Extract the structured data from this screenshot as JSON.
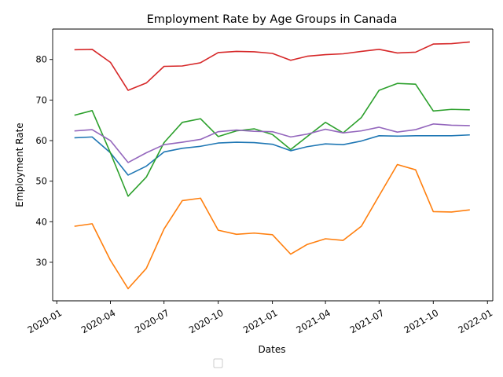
{
  "chart_data": {
    "type": "line",
    "title": "Employment Rate by Age Groups in Canada",
    "xlabel": "Dates",
    "ylabel": "Employment Rate",
    "x_dates": [
      "2020-02-01",
      "2020-03-01",
      "2020-04-01",
      "2020-05-01",
      "2020-06-01",
      "2020-07-01",
      "2020-08-01",
      "2020-09-01",
      "2020-10-01",
      "2020-11-01",
      "2020-12-01",
      "2021-01-01",
      "2021-02-01",
      "2021-03-01",
      "2021-04-01",
      "2021-05-01",
      "2021-06-01",
      "2021-07-01",
      "2021-08-01",
      "2021-09-01",
      "2021-10-01",
      "2021-11-01",
      "2021-12-01"
    ],
    "x_range": [
      "2019-12-25",
      "2022-01-10"
    ],
    "ylim": [
      20.5,
      87.5
    ],
    "x_ticks": [
      {
        "date": "2020-01-01",
        "label": "2020-01"
      },
      {
        "date": "2020-04-01",
        "label": "2020-04"
      },
      {
        "date": "2020-07-01",
        "label": "2020-07"
      },
      {
        "date": "2020-10-01",
        "label": "2020-10"
      },
      {
        "date": "2021-01-01",
        "label": "2021-01"
      },
      {
        "date": "2021-04-01",
        "label": "2021-04"
      },
      {
        "date": "2021-07-01",
        "label": "2021-07"
      },
      {
        "date": "2021-10-01",
        "label": "2021-10"
      },
      {
        "date": "2022-01-01",
        "label": "2022-01"
      }
    ],
    "y_ticks": [
      30,
      40,
      50,
      60,
      70,
      80
    ],
    "grid": false,
    "legend": {
      "placement": "bottom-center",
      "entries": []
    },
    "series": [
      {
        "color": "#1f77b4",
        "values": [
          60.7,
          60.9,
          57.0,
          51.5,
          53.7,
          57.2,
          58.1,
          58.6,
          59.4,
          59.6,
          59.5,
          59.1,
          57.5,
          58.5,
          59.2,
          59.0,
          59.9,
          61.2,
          61.1,
          61.2,
          61.2,
          61.2,
          61.4
        ]
      },
      {
        "color": "#ff7f0e",
        "values": [
          38.9,
          39.5,
          30.5,
          23.5,
          28.5,
          38.2,
          45.2,
          45.8,
          37.9,
          36.9,
          37.2,
          36.8,
          32.0,
          34.4,
          35.8,
          35.4,
          38.9,
          46.4,
          54.1,
          52.8,
          42.5,
          42.4,
          42.9
        ]
      },
      {
        "color": "#2ca02c",
        "values": [
          66.3,
          67.4,
          57.0,
          46.3,
          51.0,
          59.5,
          64.5,
          65.4,
          61.0,
          62.4,
          62.9,
          61.5,
          57.8,
          61.0,
          64.5,
          61.9,
          65.7,
          72.4,
          74.1,
          73.9,
          67.3,
          67.7,
          67.6
        ]
      },
      {
        "color": "#d62728",
        "values": [
          82.4,
          82.5,
          79.3,
          72.4,
          74.2,
          78.3,
          78.4,
          79.2,
          81.7,
          82.0,
          81.9,
          81.5,
          79.8,
          80.8,
          81.2,
          81.4,
          82.0,
          82.5,
          81.6,
          81.8,
          83.8,
          83.9,
          84.3
        ]
      },
      {
        "color": "#9467bd",
        "values": [
          62.4,
          62.7,
          60.0,
          54.6,
          57.0,
          59.0,
          59.6,
          60.3,
          62.2,
          62.6,
          62.3,
          62.2,
          60.9,
          61.6,
          62.8,
          61.9,
          62.4,
          63.3,
          62.1,
          62.7,
          64.1,
          63.8,
          63.7
        ]
      }
    ]
  }
}
